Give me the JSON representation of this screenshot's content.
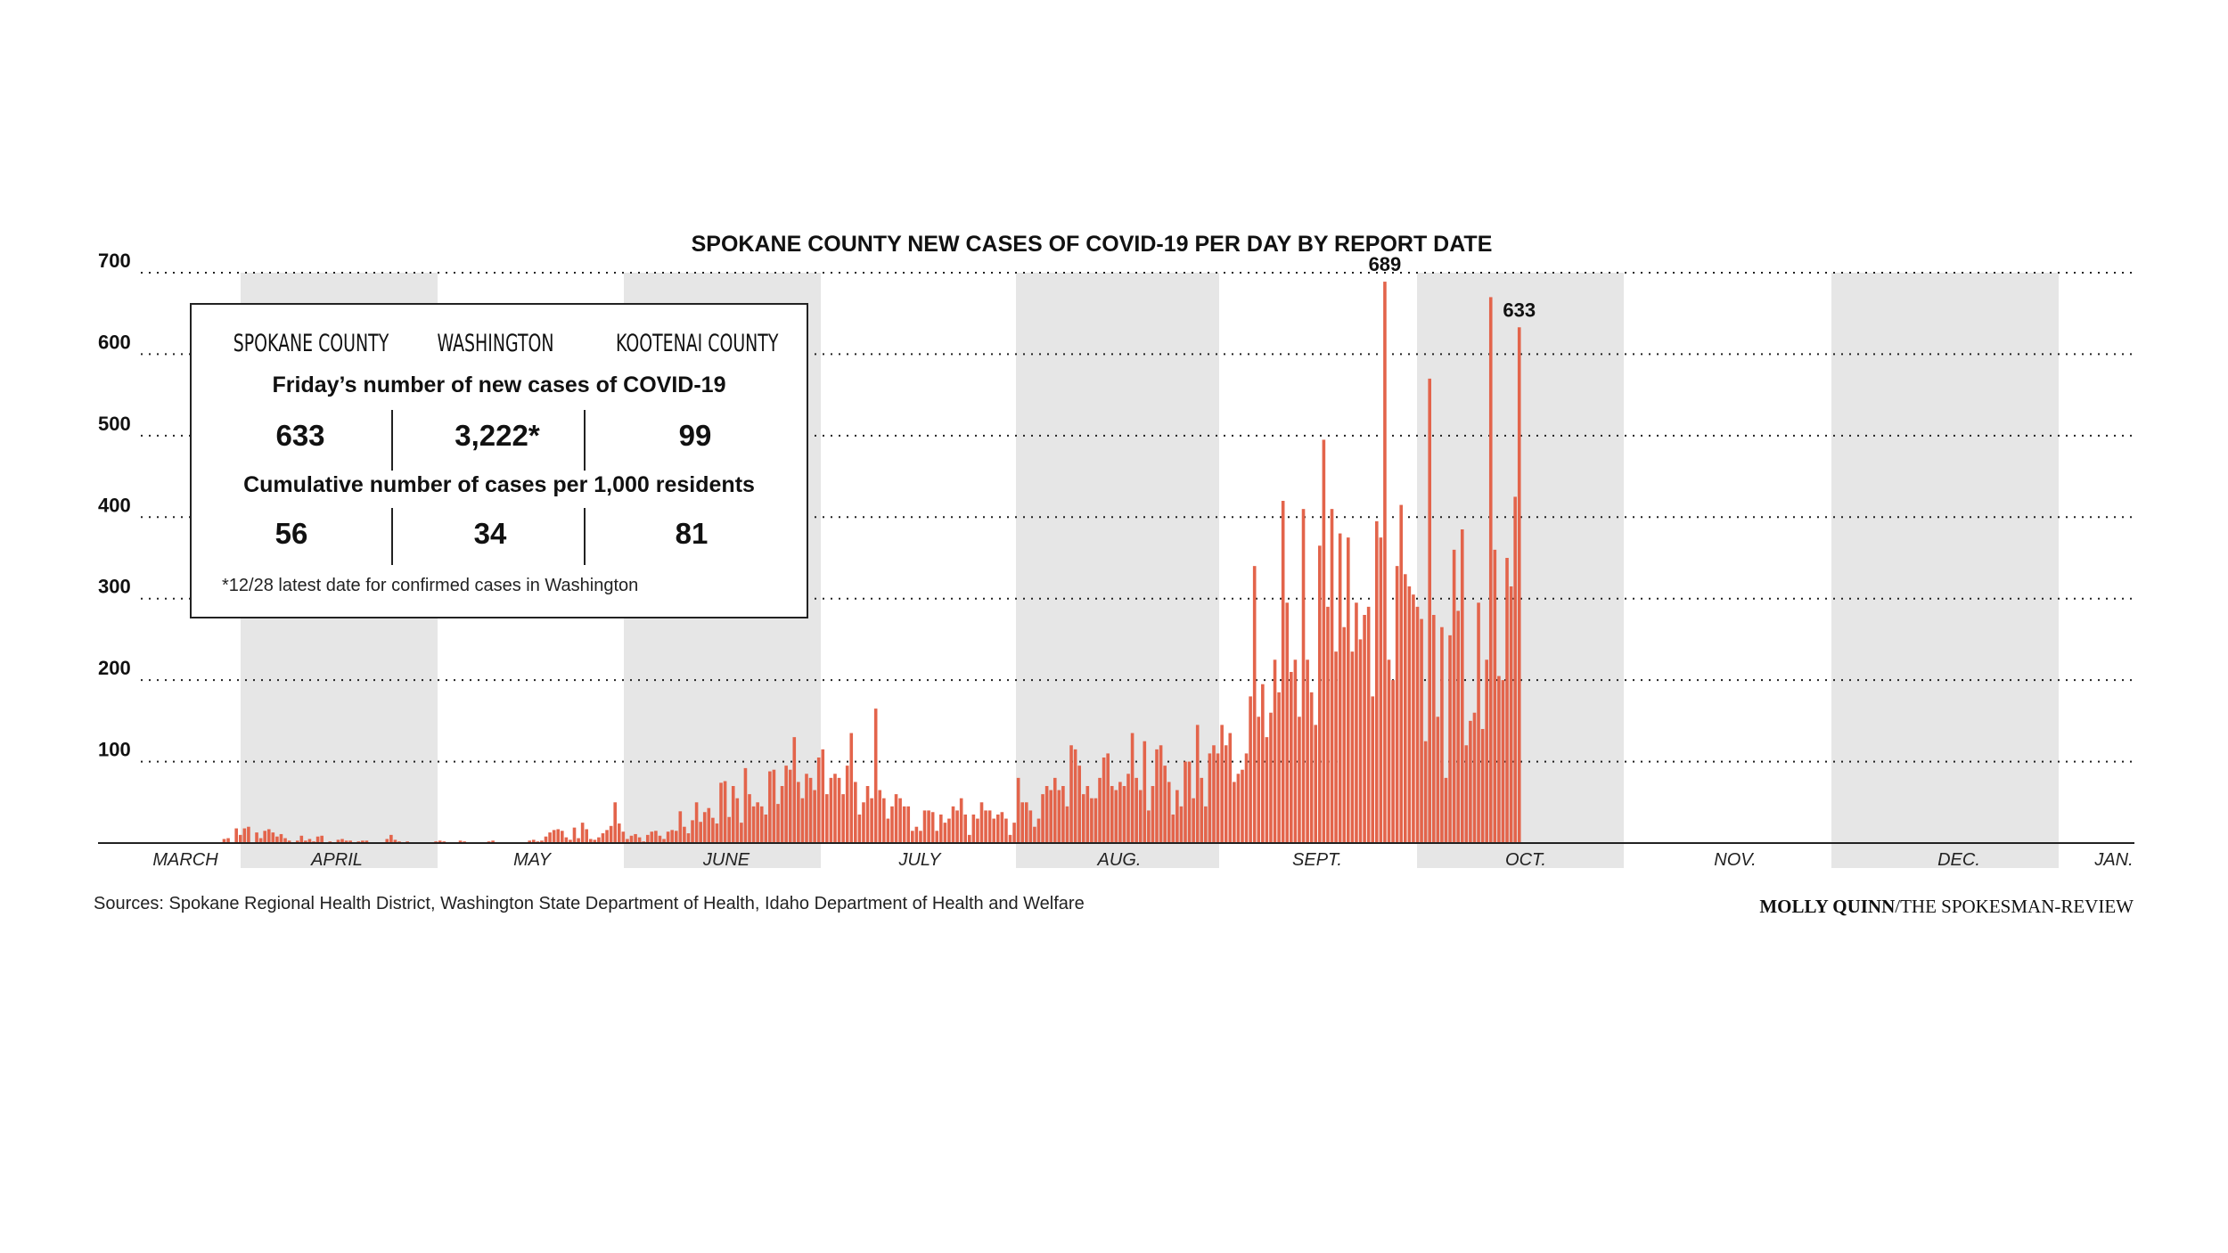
{
  "chart_data": {
    "type": "bar",
    "title": "SPOKANE COUNTY NEW CASES OF COVID-19 PER DAY BY REPORT DATE",
    "xlabel": "",
    "ylabel": "",
    "ylim": [
      0,
      700
    ],
    "yticks": [
      100,
      200,
      300,
      400,
      500,
      600,
      700
    ],
    "grid": true,
    "months": [
      "MARCH",
      "APRIL",
      "MAY",
      "JUNE",
      "JULY",
      "AUG.",
      "SEPT.",
      "OCT.",
      "NOV.",
      "DEC.",
      "JAN."
    ],
    "x_note": "One bar per day of report, March 2020 through Jan. 1, 2021; values read off the chart",
    "values": [
      0,
      0,
      0,
      0,
      0,
      0,
      0,
      0,
      0,
      0,
      0,
      0,
      0,
      0,
      0,
      1,
      0,
      0,
      0,
      0,
      0,
      0,
      0,
      0,
      5,
      6,
      0,
      18,
      10,
      18,
      20,
      0,
      13,
      6,
      15,
      17,
      13,
      8,
      11,
      6,
      3,
      0,
      3,
      9,
      3,
      5,
      2,
      8,
      9,
      0,
      2,
      0,
      4,
      5,
      3,
      3,
      1,
      2,
      3,
      3,
      0,
      0,
      0,
      1,
      5,
      10,
      4,
      2,
      1,
      2,
      0,
      0,
      0,
      0,
      0,
      1,
      2,
      3,
      2,
      0,
      1,
      1,
      3,
      2,
      0,
      0,
      0,
      0,
      0,
      2,
      3,
      1,
      0,
      0,
      0,
      0,
      0,
      0,
      1,
      3,
      4,
      2,
      3,
      8,
      13,
      16,
      17,
      15,
      7,
      4,
      19,
      6,
      25,
      17,
      5,
      4,
      7,
      12,
      16,
      21,
      50,
      24,
      14,
      5,
      9,
      11,
      7,
      2,
      10,
      14,
      15,
      9,
      5,
      14,
      16,
      15,
      39,
      20,
      12,
      28,
      50,
      26,
      38,
      43,
      31,
      24,
      74,
      76,
      32,
      70,
      55,
      25,
      92,
      60,
      45,
      50,
      45,
      35,
      88,
      90,
      48,
      70,
      95,
      90,
      130,
      75,
      55,
      85,
      80,
      65,
      105,
      115,
      60,
      80,
      85,
      80,
      60,
      95,
      135,
      75,
      35,
      50,
      70,
      55,
      165,
      65,
      55,
      30,
      45,
      60,
      55,
      45,
      45,
      15,
      20,
      15,
      40,
      40,
      38,
      15,
      35,
      25,
      30,
      45,
      40,
      55,
      35,
      10,
      35,
      30,
      50,
      40,
      40,
      30,
      35,
      38,
      30,
      10,
      25,
      80,
      50,
      50,
      40,
      20,
      30,
      60,
      70,
      65,
      80,
      65,
      70,
      45,
      120,
      115,
      95,
      60,
      70,
      55,
      55,
      80,
      105,
      110,
      70,
      65,
      75,
      70,
      85,
      135,
      80,
      65,
      125,
      40,
      70,
      115,
      120,
      95,
      75,
      35,
      65,
      45,
      100,
      100,
      55,
      145,
      80,
      45,
      110,
      120,
      110,
      145,
      120,
      135,
      75,
      85,
      90,
      110,
      180,
      340,
      155,
      195,
      130,
      160,
      225,
      185,
      420,
      295,
      210,
      225,
      155,
      410,
      225,
      185,
      145,
      365,
      495,
      290,
      410,
      235,
      380,
      265,
      375,
      235,
      295,
      250,
      280,
      290,
      180,
      395,
      375,
      689,
      225,
      200,
      340,
      415,
      330,
      315,
      305,
      290,
      275,
      125,
      570,
      280,
      155,
      265,
      80,
      255,
      360,
      285,
      385,
      120,
      150,
      160,
      295,
      140,
      225,
      670,
      360,
      205,
      200,
      350,
      315,
      425,
      633
    ],
    "annotations": [
      {
        "label": "689",
        "value": 689
      },
      {
        "label": "633",
        "value": 633
      }
    ]
  },
  "info_box": {
    "columns": [
      "SPOKANE COUNTY",
      "WASHINGTON",
      "KOOTENAI COUNTY"
    ],
    "row1_title": "Friday’s number of new cases of COVID-19",
    "row1_values": [
      "633",
      "3,222*",
      "99"
    ],
    "row2_title": "Cumulative number of cases per 1,000 residents",
    "row2_values": [
      "56",
      "34",
      "81"
    ],
    "note": "*12/28 latest date for confirmed cases in Washington"
  },
  "footer": {
    "sources": "Sources: Spokane Regional Health District, Washington State Department of Health, Idaho Department of Health and Welfare",
    "credit_name": "MOLLY QUINN",
    "credit_org": "/THE SPOKESMAN-REVIEW"
  },
  "colors": {
    "bar": "#e3644b",
    "band": "#e6e6e6"
  }
}
